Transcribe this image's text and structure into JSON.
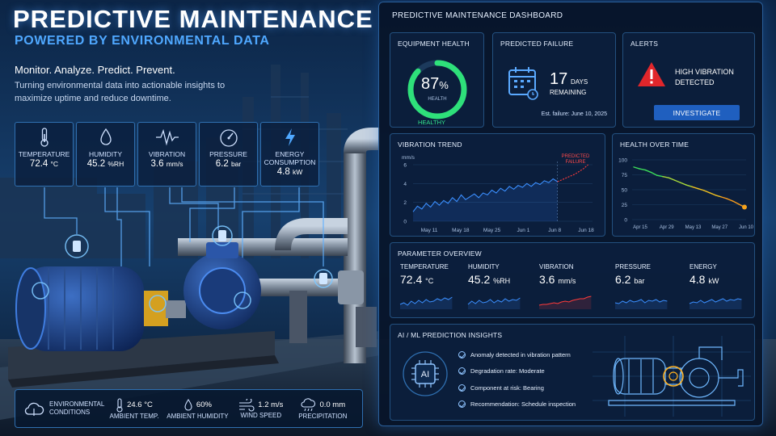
{
  "hero": {
    "title": "PREDICTIVE MAINTENANCE",
    "subtitle": "POWERED BY ENVIRONMENTAL DATA",
    "tagline": "Monitor. Analyze. Predict. Prevent.",
    "description": "Turning environmental data into actionable insights to maximize uptime and reduce downtime."
  },
  "sensors": [
    {
      "label": "TEMPERATURE",
      "value": "72.4",
      "unit": "°C",
      "icon": "thermometer-icon"
    },
    {
      "label": "HUMIDITY",
      "value": "45.2",
      "unit": "%RH",
      "icon": "droplet-icon"
    },
    {
      "label": "VIBRATION",
      "value": "3.6",
      "unit": "mm/s",
      "icon": "waveform-icon"
    },
    {
      "label": "PRESSURE",
      "value": "6.2",
      "unit": "bar",
      "icon": "gauge-icon"
    },
    {
      "label": "ENERGY CONSUMPTION",
      "value": "4.8",
      "unit": "kW",
      "icon": "lightning-icon"
    }
  ],
  "environment": {
    "label": "ENVIRONMENTAL CONDITIONS",
    "items": [
      {
        "label": "AMBIENT TEMP.",
        "value": "24.6 °C",
        "icon": "thermometer-icon"
      },
      {
        "label": "AMBIENT HUMIDITY",
        "value": "60%",
        "icon": "droplet-icon"
      },
      {
        "label": "WIND SPEED",
        "value": "1.2 m/s",
        "icon": "wind-icon"
      },
      {
        "label": "PRECIPITATION",
        "value": "0.0 mm",
        "icon": "rain-cloud-icon"
      }
    ]
  },
  "dashboard": {
    "title": "PREDICTIVE MAINTENANCE DASHBOARD",
    "equipment_health": {
      "title": "EQUIPMENT HEALTH",
      "value": 87,
      "value_text": "87",
      "unit": "%",
      "sub": "HEALTH",
      "status": "HEALTHY",
      "color": "#2ee07a"
    },
    "predicted_failure": {
      "title": "PREDICTED FAILURE",
      "days": "17",
      "days_unit": "DAYS",
      "remaining": "REMAINING",
      "estimate": "Est. failure: June 10, 2025"
    },
    "alerts": {
      "title": "ALERTS",
      "message_line1": "HIGH VIBRATION",
      "message_line2": "DETECTED",
      "button": "INVESTIGATE",
      "color": "#e0262b"
    },
    "parameter_overview": {
      "title": "PARAMETER OVERVIEW",
      "items": [
        {
          "label": "TEMPERATURE",
          "value": "72.4",
          "unit": "°C",
          "color": "#3b8fff"
        },
        {
          "label": "HUMIDITY",
          "value": "45.2",
          "unit": "%RH",
          "color": "#3b8fff"
        },
        {
          "label": "VIBRATION",
          "value": "3.6",
          "unit": "mm/s",
          "color": "#ff3b3b"
        },
        {
          "label": "PRESSURE",
          "value": "6.2",
          "unit": "bar",
          "color": "#3b8fff"
        },
        {
          "label": "ENERGY",
          "value": "4.8",
          "unit": "kW",
          "color": "#3b8fff"
        }
      ]
    },
    "insights": {
      "title": "AI / ML PREDICTION INSIGHTS",
      "badge": "AI",
      "items": [
        "Anomaly detected in vibration pattern",
        "Degradation rate: Moderate",
        "Component at risk: Bearing",
        "Recommendation: Schedule inspection"
      ]
    }
  },
  "chart_data": [
    {
      "type": "line",
      "title": "VIBRATION TREND",
      "ylabel": "mm/s",
      "ylim": [
        0,
        6
      ],
      "yticks": [
        0,
        2,
        4,
        6
      ],
      "xticks": [
        "May 11",
        "May 18",
        "May 25",
        "Jun 1",
        "Jun 8",
        "Jun 18"
      ],
      "annotation": "PREDICTED FAILURE",
      "series": [
        {
          "values": [
            1.0,
            1.6,
            1.3,
            1.9,
            1.5,
            2.1,
            1.7,
            2.2,
            1.9,
            2.5,
            2.1,
            2.8,
            2.3,
            2.6,
            2.9,
            2.5,
            3.0,
            2.8,
            3.3,
            3.0,
            3.5,
            3.2,
            3.7,
            3.4,
            3.8,
            3.6,
            4.0,
            3.7,
            4.1,
            3.9,
            4.3,
            4.1,
            4.5,
            4.2
          ],
          "color": "#3b8fff",
          "style": "solid"
        },
        {
          "values": [
            4.2,
            4.4,
            4.6,
            4.8,
            5.0,
            5.3,
            5.6,
            6.0
          ],
          "color": "#ff3b3b",
          "style": "dashed"
        }
      ],
      "grid": true
    },
    {
      "type": "line",
      "title": "HEALTH OVER TIME",
      "ylim": [
        0,
        100
      ],
      "yticks": [
        0,
        25,
        50,
        75,
        100
      ],
      "xticks": [
        "Apr 15",
        "Apr 29",
        "May 13",
        "May 27",
        "Jun 10"
      ],
      "series": [
        {
          "values": [
            88,
            85,
            83,
            79,
            74,
            72,
            70,
            66,
            62,
            58,
            55,
            52,
            49,
            45,
            41,
            38,
            35,
            31,
            26,
            21
          ],
          "colors": [
            "#3ddc5a",
            "#a8d83a",
            "#f0c020",
            "#f59a1c"
          ]
        }
      ],
      "grid": true
    }
  ]
}
